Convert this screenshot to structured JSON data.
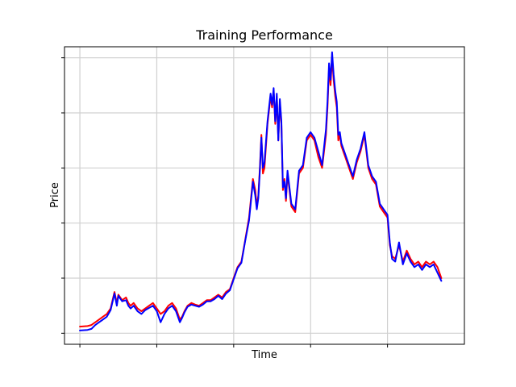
{
  "chart_data": {
    "type": "line",
    "title": "Training Performance",
    "xlabel": "Time",
    "ylabel": "Price",
    "tick_labels_visible": false,
    "grid": true,
    "legend": "none",
    "xlim": [
      -20,
      500
    ],
    "ylim": [
      -0.2,
      5.2
    ],
    "x_gridlines": [
      0,
      100,
      200,
      300,
      400
    ],
    "y_gridlines": [
      0,
      1,
      2,
      3,
      4,
      5
    ],
    "series": [
      {
        "color": "#ff0000",
        "x": [
          0,
          10,
          15,
          20,
          25,
          30,
          35,
          40,
          45,
          48,
          50,
          55,
          60,
          63,
          66,
          70,
          75,
          80,
          85,
          90,
          95,
          100,
          105,
          110,
          115,
          120,
          125,
          130,
          133,
          136,
          140,
          145,
          150,
          155,
          160,
          165,
          170,
          175,
          180,
          185,
          190,
          195,
          200,
          205,
          210,
          215,
          220,
          225,
          228,
          230,
          232,
          234,
          236,
          238,
          240,
          244,
          248,
          250,
          252,
          254,
          256,
          258,
          260,
          262,
          264,
          266,
          268,
          270,
          275,
          280,
          285,
          290,
          295,
          300,
          305,
          310,
          315,
          320,
          322,
          324,
          326,
          328,
          330,
          332,
          334,
          336,
          338,
          340,
          345,
          350,
          355,
          360,
          365,
          370,
          375,
          380,
          385,
          390,
          395,
          400,
          403,
          406,
          410,
          415,
          420,
          425,
          430,
          435,
          440,
          445,
          450,
          455,
          460,
          465,
          470
        ],
        "values": [
          0.12,
          0.13,
          0.15,
          0.2,
          0.25,
          0.3,
          0.35,
          0.45,
          0.75,
          0.55,
          0.7,
          0.6,
          0.65,
          0.55,
          0.5,
          0.55,
          0.45,
          0.4,
          0.45,
          0.5,
          0.55,
          0.45,
          0.35,
          0.4,
          0.5,
          0.55,
          0.45,
          0.25,
          0.3,
          0.4,
          0.5,
          0.55,
          0.52,
          0.5,
          0.55,
          0.6,
          0.6,
          0.65,
          0.7,
          0.65,
          0.75,
          0.8,
          1.0,
          1.2,
          1.3,
          1.7,
          2.1,
          2.8,
          2.6,
          2.3,
          2.5,
          3.0,
          3.6,
          2.9,
          3.0,
          3.8,
          4.3,
          4.1,
          4.4,
          3.8,
          4.3,
          3.5,
          4.2,
          3.8,
          2.6,
          2.8,
          2.4,
          2.9,
          2.3,
          2.2,
          2.9,
          3.0,
          3.5,
          3.6,
          3.5,
          3.2,
          3.0,
          3.6,
          4.1,
          4.8,
          4.5,
          5.0,
          4.6,
          4.3,
          4.1,
          3.5,
          3.6,
          3.4,
          3.2,
          3.0,
          2.8,
          3.1,
          3.3,
          3.6,
          3.0,
          2.8,
          2.7,
          2.3,
          2.2,
          2.1,
          1.6,
          1.4,
          1.35,
          1.6,
          1.3,
          1.5,
          1.35,
          1.25,
          1.3,
          1.2,
          1.3,
          1.25,
          1.3,
          1.2,
          1.0
        ]
      },
      {
        "color": "#0000ff",
        "x": [
          0,
          10,
          15,
          20,
          25,
          30,
          35,
          40,
          45,
          48,
          50,
          55,
          60,
          63,
          66,
          70,
          75,
          80,
          85,
          90,
          95,
          100,
          105,
          110,
          115,
          120,
          125,
          130,
          133,
          136,
          140,
          145,
          150,
          155,
          160,
          165,
          170,
          175,
          180,
          185,
          190,
          195,
          200,
          205,
          210,
          215,
          220,
          225,
          228,
          230,
          232,
          234,
          236,
          238,
          240,
          244,
          248,
          250,
          252,
          254,
          256,
          258,
          260,
          262,
          264,
          266,
          268,
          270,
          275,
          280,
          285,
          290,
          295,
          300,
          305,
          310,
          315,
          320,
          322,
          324,
          326,
          328,
          330,
          332,
          334,
          336,
          338,
          340,
          345,
          350,
          355,
          360,
          365,
          370,
          375,
          380,
          385,
          390,
          395,
          400,
          403,
          406,
          410,
          415,
          420,
          425,
          430,
          435,
          440,
          445,
          450,
          455,
          460,
          465,
          470
        ],
        "values": [
          0.05,
          0.06,
          0.08,
          0.15,
          0.2,
          0.25,
          0.3,
          0.42,
          0.72,
          0.5,
          0.68,
          0.58,
          0.6,
          0.5,
          0.45,
          0.5,
          0.4,
          0.35,
          0.42,
          0.46,
          0.5,
          0.4,
          0.2,
          0.35,
          0.45,
          0.5,
          0.4,
          0.2,
          0.28,
          0.38,
          0.48,
          0.52,
          0.5,
          0.48,
          0.52,
          0.58,
          0.58,
          0.62,
          0.68,
          0.62,
          0.72,
          0.78,
          0.98,
          1.18,
          1.28,
          1.68,
          2.05,
          2.75,
          2.5,
          2.25,
          2.45,
          2.95,
          3.55,
          3.0,
          3.1,
          3.85,
          4.35,
          4.15,
          4.45,
          3.85,
          4.35,
          3.5,
          4.25,
          3.85,
          2.65,
          2.75,
          2.45,
          2.95,
          2.35,
          2.25,
          2.95,
          3.05,
          3.55,
          3.65,
          3.55,
          3.3,
          3.05,
          3.7,
          4.2,
          4.9,
          4.6,
          5.1,
          4.7,
          4.4,
          4.2,
          3.6,
          3.65,
          3.45,
          3.25,
          3.05,
          2.85,
          3.15,
          3.35,
          3.65,
          3.05,
          2.85,
          2.75,
          2.35,
          2.25,
          2.15,
          1.65,
          1.35,
          1.3,
          1.65,
          1.25,
          1.45,
          1.3,
          1.2,
          1.25,
          1.15,
          1.25,
          1.2,
          1.25,
          1.1,
          0.95
        ]
      }
    ]
  }
}
